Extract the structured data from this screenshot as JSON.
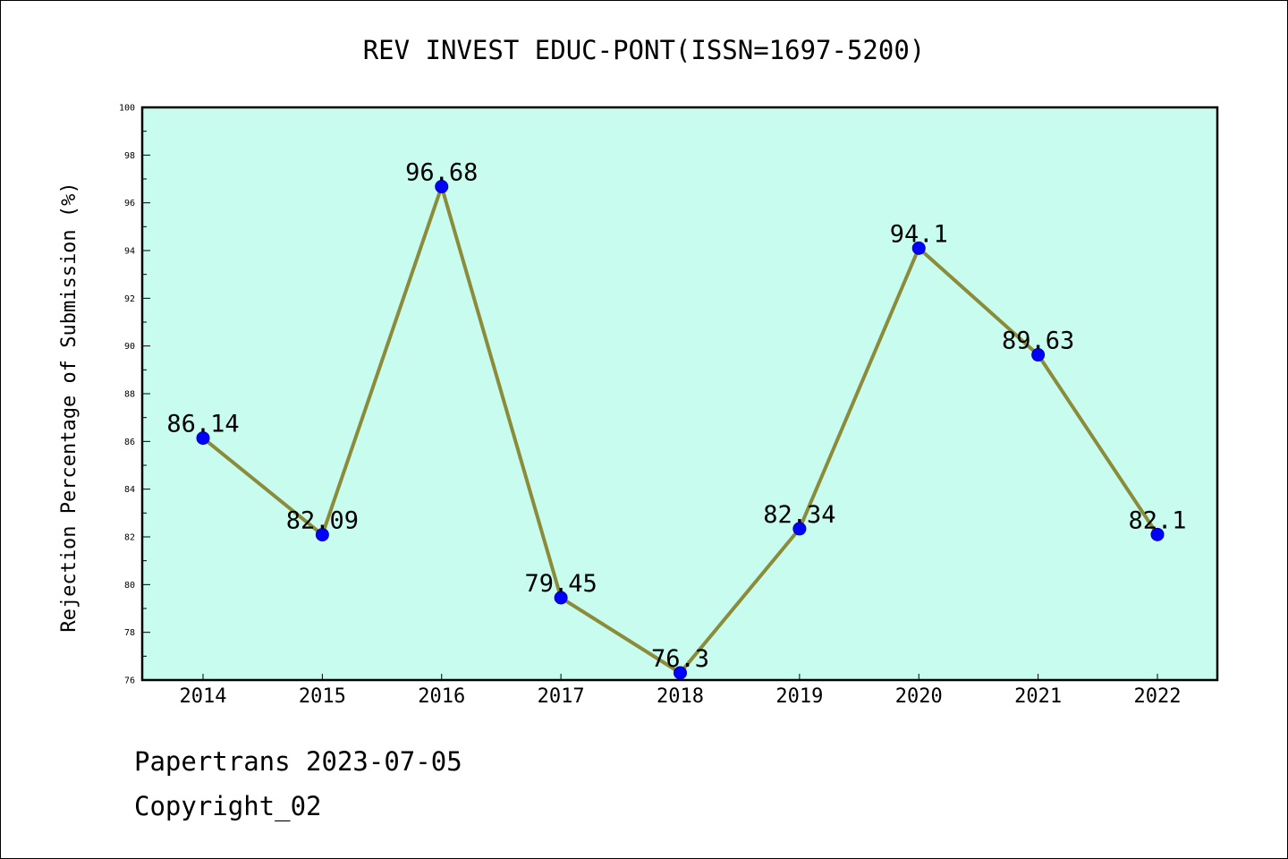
{
  "chart_data": {
    "type": "line",
    "title": "REV INVEST EDUC-PONT(ISSN=1697-5200)",
    "xlabel": "",
    "ylabel": "Rejection Percentage of Submission (%)",
    "categories": [
      "2014",
      "2015",
      "2016",
      "2017",
      "2018",
      "2019",
      "2020",
      "2021",
      "2022"
    ],
    "series": [
      {
        "values": [
          86.14,
          82.09,
          96.68,
          79.45,
          76.3,
          82.34,
          94.1,
          89.63,
          82.1
        ],
        "labels": [
          "86.14",
          "82.09",
          "96.68",
          "79.45",
          "76.3",
          "82.34",
          "94.1",
          "89.63",
          "82.1"
        ]
      }
    ],
    "ylim": [
      76,
      100
    ],
    "yticks": [
      76,
      78,
      80,
      82,
      84,
      86,
      88,
      90,
      92,
      94,
      96,
      98,
      100
    ],
    "grid": false,
    "legend": "none",
    "colors": {
      "plot_background": "#c8fcee",
      "line": "#8b8b3a",
      "marker": "#0000ff",
      "axes": "#000000"
    }
  },
  "footer": {
    "line1": "Papertrans 2023-07-05",
    "line2": "Copyright_02"
  }
}
